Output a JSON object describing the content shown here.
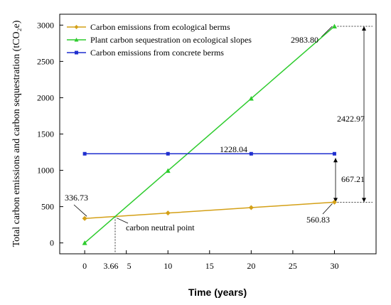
{
  "chart_data": {
    "type": "line",
    "xlabel": "Time (years)",
    "ylabel": "Total carbon emissions and carbon sequestration (tCO₂e)",
    "xlim": [
      -3,
      35
    ],
    "ylim": [
      -150,
      3150
    ],
    "x_ticks": [
      "0",
      "5",
      "10",
      "15",
      "20",
      "25",
      "30"
    ],
    "y_ticks": [
      "0",
      "500",
      "1000",
      "1500",
      "2000",
      "2500",
      "3000"
    ],
    "legend_position": "top-left",
    "series": [
      {
        "name": "Carbon emissions from ecological berms",
        "color": "#d4a017",
        "marker": "diamond",
        "x": [
          0,
          10,
          20,
          30
        ],
        "values": [
          336.73,
          411.43,
          486.13,
          560.83
        ]
      },
      {
        "name": "Plant carbon sequestration on ecological slopes",
        "color": "#2ecc2e",
        "marker": "triangle",
        "x": [
          0,
          10,
          20,
          30
        ],
        "values": [
          0,
          994.6,
          1989.2,
          2983.8
        ]
      },
      {
        "name": "Carbon emissions from concrete berms",
        "color": "#1f2fcf",
        "marker": "square",
        "x": [
          0,
          10,
          20,
          30
        ],
        "values": [
          1228.04,
          1228.04,
          1228.04,
          1228.04
        ]
      }
    ],
    "annotations": {
      "label_336": "336.73",
      "label_2983": "2983.80",
      "label_1228": "1228.04",
      "label_560": "560.83",
      "label_667": "667.21",
      "label_2422": "2422.97",
      "neutral_label": "carbon neutral point",
      "neutral_x_label": "3.66",
      "neutral_point": {
        "x": 3.66,
        "y": 363.5
      }
    }
  }
}
